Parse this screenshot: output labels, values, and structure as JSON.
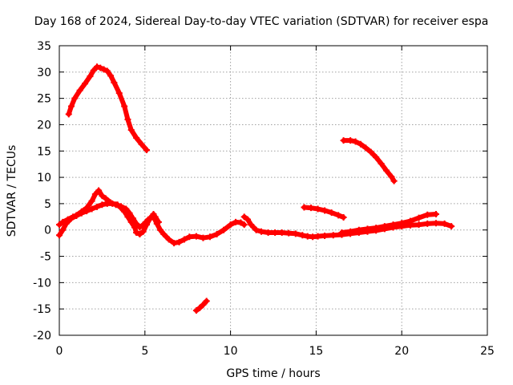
{
  "chart_data": {
    "type": "scatter",
    "title": "Day 168 of 2024, Sidereal Day-to-day VTEC variation (SDTVAR) for receiver espa",
    "xlabel": "GPS time / hours",
    "ylabel": "SDTVAR / TECUs",
    "xlim": [
      0,
      25
    ],
    "ylim": [
      -20,
      35
    ],
    "xticks": [
      0,
      5,
      10,
      15,
      20,
      25
    ],
    "yticks": [
      -20,
      -15,
      -10,
      -5,
      0,
      5,
      10,
      15,
      20,
      25,
      30,
      35
    ],
    "grid": true,
    "marker": "plus",
    "color": "#ff0000",
    "series": [
      {
        "name": "arc-1",
        "x": [
          0.55,
          0.7,
          0.9,
          1.2,
          1.5,
          1.8,
          2.0,
          2.2,
          2.4,
          2.6,
          2.8,
          3.0,
          3.2,
          3.5,
          3.8,
          4.0,
          4.2,
          4.5,
          4.8,
          5.1
        ],
        "y": [
          22.0,
          23.5,
          25.0,
          26.5,
          27.8,
          29.2,
          30.3,
          31.0,
          30.8,
          30.5,
          30.2,
          29.3,
          28.0,
          26.0,
          23.5,
          21.0,
          19.0,
          17.5,
          16.3,
          15.2
        ]
      },
      {
        "name": "arc-2",
        "x": [
          0.0,
          0.2,
          0.5,
          0.8,
          1.0,
          1.3,
          1.6,
          1.9,
          2.1,
          2.3,
          2.5,
          2.7,
          3.0,
          3.3,
          3.6,
          3.9,
          4.1,
          4.3,
          4.5,
          4.7,
          4.9,
          5.2,
          5.5,
          5.7,
          5.9,
          6.1,
          6.4,
          6.7,
          7.0,
          7.3,
          7.6,
          8.0,
          8.4,
          8.8,
          9.2,
          9.6,
          10.0,
          10.3,
          10.6,
          10.8
        ],
        "y": [
          1.0,
          1.5,
          2.0,
          2.5,
          2.8,
          3.5,
          4.2,
          5.5,
          6.8,
          7.5,
          6.5,
          6.0,
          5.2,
          4.8,
          4.5,
          4.0,
          3.2,
          2.2,
          1.2,
          0.5,
          1.0,
          2.0,
          2.5,
          1.2,
          0.0,
          -0.8,
          -1.8,
          -2.5,
          -2.3,
          -1.8,
          -1.3,
          -1.2,
          -1.5,
          -1.3,
          -0.8,
          0.0,
          1.0,
          1.5,
          1.4,
          1.0
        ]
      },
      {
        "name": "arc-3",
        "x": [
          0.0,
          0.2,
          0.4,
          0.7,
          1.0,
          1.3,
          1.6,
          1.9,
          2.2,
          2.5,
          2.8,
          3.1,
          3.4,
          3.6,
          3.8,
          4.0,
          4.2,
          4.4,
          4.5,
          4.7,
          4.9,
          5.1,
          5.3,
          5.5,
          5.6,
          5.8
        ],
        "y": [
          -1.0,
          0.0,
          1.2,
          2.2,
          2.7,
          3.2,
          3.6,
          4.0,
          4.4,
          4.8,
          5.0,
          5.0,
          4.8,
          4.2,
          3.5,
          2.5,
          1.5,
          0.5,
          -0.5,
          -0.8,
          -0.3,
          1.0,
          2.2,
          3.0,
          2.5,
          1.5
        ]
      },
      {
        "name": "arc-4",
        "x": [
          10.8,
          11.0,
          11.2,
          11.5,
          11.8,
          12.2,
          12.6,
          13.0,
          13.4,
          13.8,
          14.2,
          14.5,
          14.8,
          15.1,
          15.5,
          16.0,
          16.5,
          17.0,
          17.5,
          18.0,
          18.5,
          19.0,
          19.5,
          20.0,
          20.5,
          21.0,
          21.5,
          22.0,
          22.5,
          22.9
        ],
        "y": [
          2.5,
          2.0,
          1.0,
          0.0,
          -0.3,
          -0.5,
          -0.5,
          -0.5,
          -0.6,
          -0.7,
          -1.0,
          -1.2,
          -1.3,
          -1.2,
          -1.1,
          -1.0,
          -0.9,
          -0.7,
          -0.5,
          -0.3,
          -0.1,
          0.2,
          0.5,
          0.7,
          0.9,
          1.0,
          1.2,
          1.3,
          1.2,
          0.7
        ]
      },
      {
        "name": "arc-5",
        "x": [
          16.5,
          17.0,
          17.5,
          18.0,
          18.5,
          19.0,
          19.5,
          20.0,
          20.5,
          21.0,
          21.5,
          22.0
        ],
        "y": [
          -0.5,
          -0.3,
          0.0,
          0.2,
          0.4,
          0.7,
          1.0,
          1.3,
          1.7,
          2.3,
          2.9,
          3.0
        ]
      },
      {
        "name": "arc-6",
        "x": [
          14.3,
          14.7,
          15.1,
          15.5,
          15.9,
          16.3,
          16.6
        ],
        "y": [
          4.3,
          4.2,
          4.0,
          3.7,
          3.3,
          2.8,
          2.4
        ]
      },
      {
        "name": "arc-7",
        "x": [
          16.6,
          17.0,
          17.3,
          17.6,
          17.9,
          18.2,
          18.5,
          18.8,
          19.1,
          19.4,
          19.55
        ],
        "y": [
          17.0,
          17.0,
          16.8,
          16.3,
          15.6,
          14.8,
          13.8,
          12.6,
          11.3,
          10.1,
          9.3
        ]
      },
      {
        "name": "arc-8",
        "x": [
          8.0,
          8.2,
          8.4,
          8.6
        ],
        "y": [
          -15.3,
          -14.8,
          -14.2,
          -13.5
        ]
      }
    ]
  }
}
